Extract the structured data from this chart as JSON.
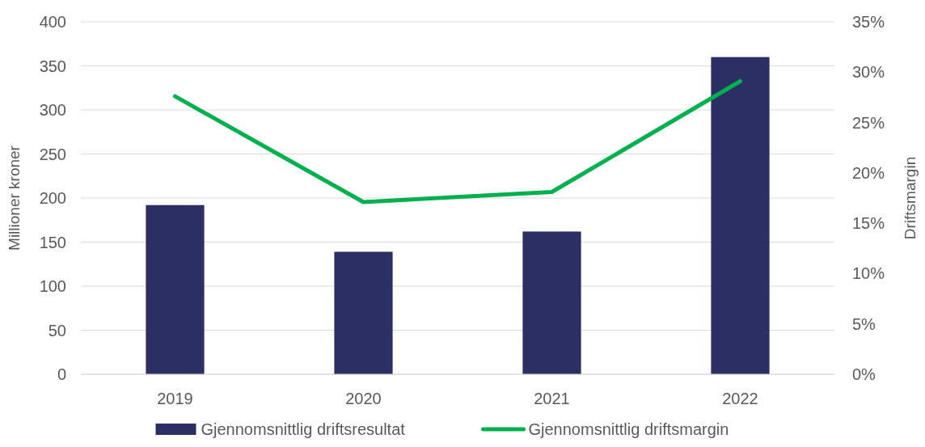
{
  "chart_data": {
    "type": "bar",
    "categories": [
      "2019",
      "2020",
      "2021",
      "2022"
    ],
    "ylabel": "Millioner kroner",
    "y2label": "Driftsmargin",
    "ylim": [
      0,
      400
    ],
    "yticks": [
      0,
      50,
      100,
      150,
      200,
      250,
      300,
      350,
      400
    ],
    "y2lim": [
      0,
      35
    ],
    "y2ticks": [
      {
        "value": 0,
        "label": "0%"
      },
      {
        "value": 5,
        "label": "5%"
      },
      {
        "value": 10,
        "label": "10%"
      },
      {
        "value": 15,
        "label": "15%"
      },
      {
        "value": 20,
        "label": "20%"
      },
      {
        "value": 25,
        "label": "25%"
      },
      {
        "value": 30,
        "label": "30%"
      },
      {
        "value": 35,
        "label": "35%"
      }
    ],
    "grid": "y",
    "legend": "bottom",
    "series": [
      {
        "name": "Gjennomsnittlig driftsresultat",
        "color": "#2c2f63",
        "values": [
          192,
          139,
          162,
          360
        ]
      },
      {
        "name": "Gjennomsnittlig driftsmargin",
        "type": "line",
        "axis": "y2",
        "color": "#00b04f",
        "values": [
          27.6,
          17.1,
          18.1,
          29.1
        ]
      }
    ]
  }
}
